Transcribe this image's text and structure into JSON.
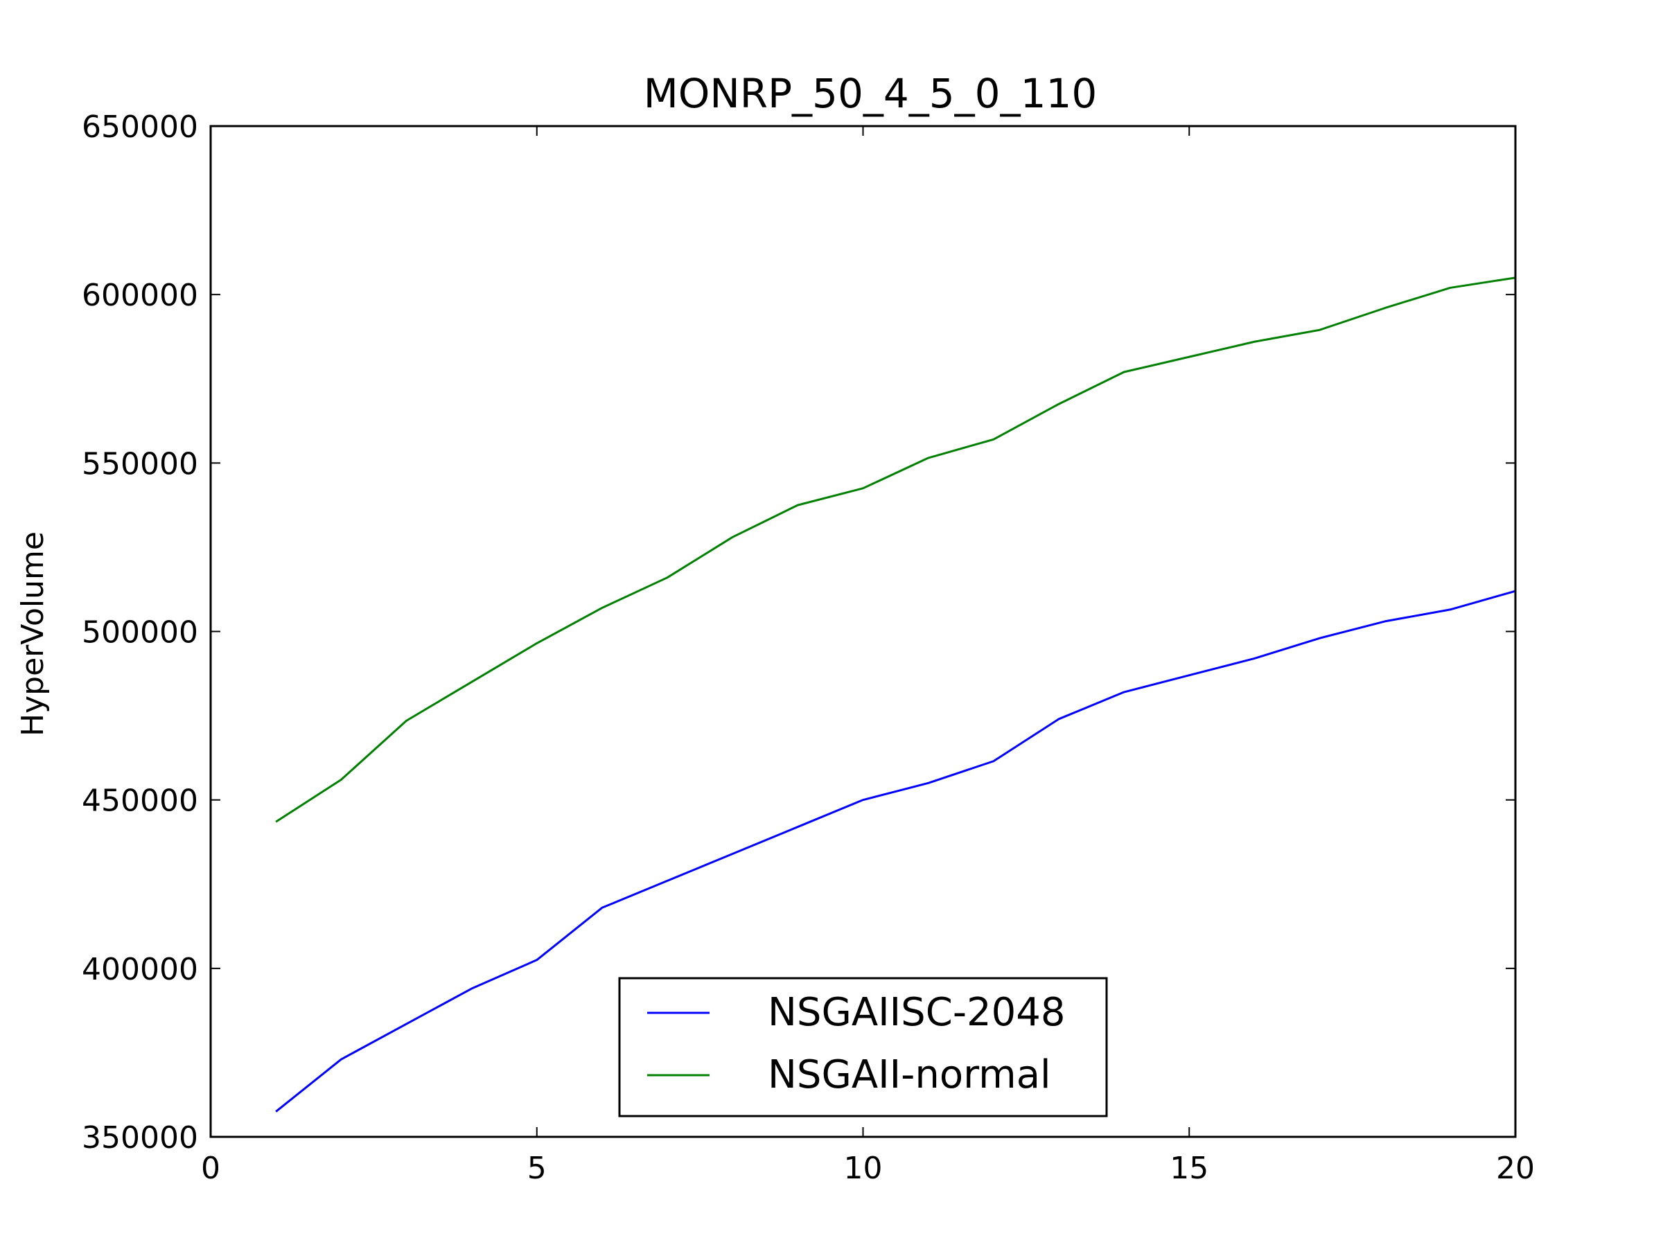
{
  "chart_data": {
    "type": "line",
    "title": "MONRP_50_4_5_0_110",
    "xlabel": "",
    "ylabel": "HyperVolume",
    "xlim": [
      0,
      20
    ],
    "ylim": [
      350000,
      650000
    ],
    "xticks": [
      0,
      5,
      10,
      15,
      20
    ],
    "yticks": [
      350000,
      400000,
      450000,
      500000,
      550000,
      600000,
      650000
    ],
    "grid": false,
    "legend_position": "lower-center",
    "x": [
      1,
      2,
      3,
      4,
      5,
      6,
      7,
      8,
      9,
      10,
      11,
      12,
      13,
      14,
      15,
      16,
      17,
      18,
      19,
      20
    ],
    "series": [
      {
        "name": "NSGAIISC-2048",
        "color": "#0000ff",
        "values": [
          357500,
          373000,
          383500,
          394000,
          402500,
          418000,
          426000,
          434000,
          442000,
          450000,
          455000,
          461500,
          474000,
          482000,
          487000,
          492000,
          498000,
          503000,
          506500,
          512000
        ]
      },
      {
        "name": "NSGAII-normal",
        "color": "#008000",
        "values": [
          443500,
          456000,
          473500,
          485000,
          496500,
          507000,
          516000,
          528000,
          537500,
          542500,
          551500,
          557000,
          567500,
          577000,
          581500,
          586000,
          589500,
          596000,
          602000,
          605000
        ]
      }
    ]
  }
}
